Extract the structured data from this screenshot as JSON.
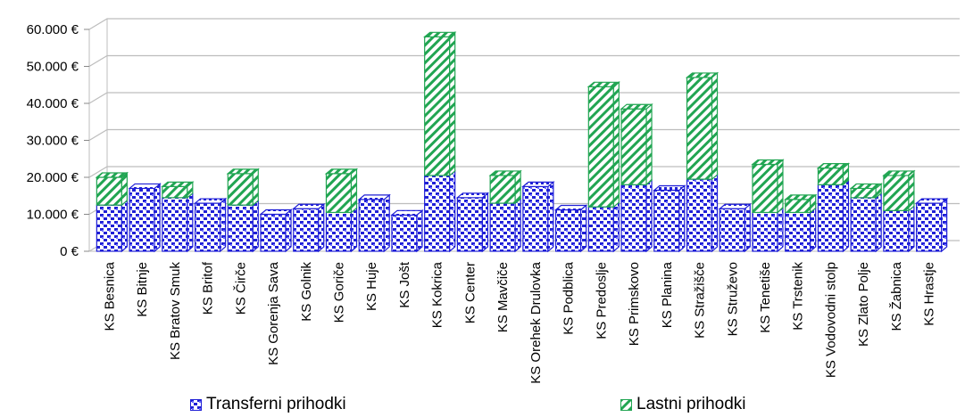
{
  "chart_data": {
    "type": "bar",
    "stacked": true,
    "three_d": true,
    "categories": [
      "KS Besnica",
      "KS Bitnje",
      "KS Bratov Smuk",
      "KS Britof",
      "KS Čirče",
      "KS Gorenja Sava",
      "KS Golnik",
      "KS Goriče",
      "KS Huje",
      "KS Jošt",
      "KS Kokrica",
      "KS Center",
      "KS Mavčiče",
      "KS Orehek Drulovka",
      "KS Podblica",
      "KS Predoslje",
      "KS Primskovo",
      "KS Planina",
      "KS Stražišče",
      "KS Struževo",
      "KS Tenetiše",
      "KS Trstenik",
      "KS Vodovodni stolp",
      "KS Zlato Polje",
      "KS Žabnica",
      "KS Hrastje"
    ],
    "series": [
      {
        "name": "Transferni prihodki",
        "color": "#1f1fd6",
        "values": [
          12500,
          17000,
          14500,
          13000,
          12500,
          10000,
          11500,
          10500,
          14000,
          9800,
          20500,
          14500,
          13000,
          17500,
          11200,
          12000,
          18000,
          16500,
          19500,
          11500,
          10500,
          10500,
          18000,
          14500,
          11000,
          13000
        ]
      },
      {
        "name": "Lastni prihodki",
        "color": "#1fa050",
        "values": [
          7500,
          0,
          3000,
          0,
          8500,
          0,
          0,
          10500,
          0,
          0,
          37500,
          0,
          7500,
          0,
          0,
          32500,
          20500,
          0,
          27500,
          0,
          13000,
          3500,
          4500,
          2500,
          9500,
          0
        ]
      }
    ],
    "ylim": [
      0,
      60000
    ],
    "yticks": [
      "0 €",
      "10.000 €",
      "20.000 €",
      "30.000 €",
      "40.000 €",
      "50.000 €",
      "60.000 €"
    ],
    "grid": true,
    "legend_position": "bottom"
  },
  "legend": {
    "transfer_label": "Transferni prihodki",
    "lastni_label": "Lastni prihodki"
  }
}
